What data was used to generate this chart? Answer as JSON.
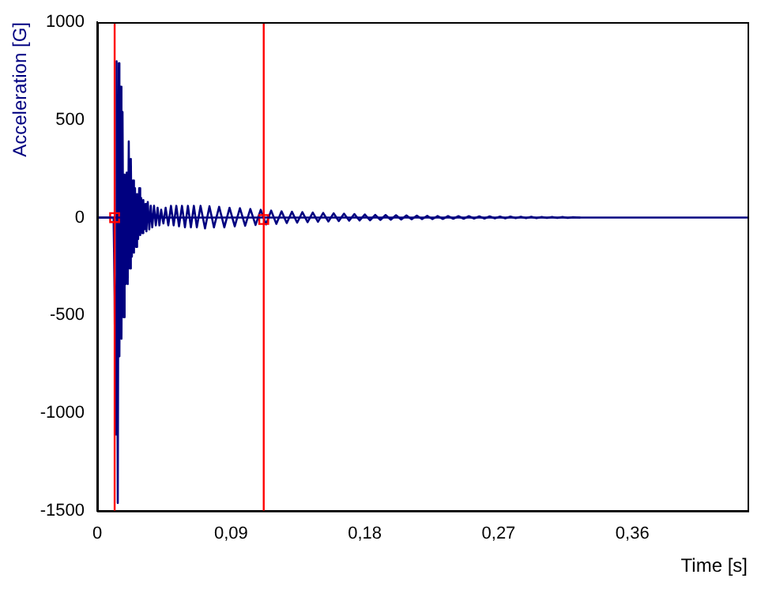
{
  "chart_data": {
    "type": "line",
    "xlabel": "Time [s]",
    "ylabel": "Acceleration [G]",
    "xlim": [
      0,
      0.4375
    ],
    "ylim": [
      -1500,
      1000
    ],
    "xticks": [
      0,
      {
        "value": 0.09,
        "label": "0,09"
      },
      {
        "value": 0.18,
        "label": "0,18"
      },
      {
        "value": 0.27,
        "label": "0,27"
      },
      {
        "value": 0.36,
        "label": "0,36"
      }
    ],
    "yticks": [
      -1500,
      -1000,
      -500,
      0,
      500,
      1000
    ],
    "grid": false,
    "legend": false,
    "ref_lines": [
      {
        "axis": "y",
        "value": 0,
        "color": "#000080"
      },
      {
        "axis": "x",
        "value": 0.0117,
        "color": "#ff0000"
      },
      {
        "axis": "x",
        "value": 0.112,
        "color": "#ff0000"
      }
    ],
    "series": [
      {
        "type": "line",
        "marker": "none",
        "color": "#000080",
        "x": [
          0,
          0.011,
          0.0117,
          0.0122,
          0.013,
          0.0138,
          0.0145,
          0.0149,
          0.0156,
          0.0163,
          0.017,
          0.0177,
          0.0184,
          0.0191,
          0.0198,
          0.0205,
          0.0212,
          0.0219,
          0.0226,
          0.0233,
          0.024,
          0.0247,
          0.0254,
          0.0261,
          0.0268,
          0.0275,
          0.0282,
          0.0289,
          0.0296,
          0.0303,
          0.031,
          0.0317,
          0.0324,
          0.0331,
          0.034,
          0.035,
          0.036,
          0.037,
          0.0382,
          0.0394,
          0.0406,
          0.0418,
          0.043,
          0.0445,
          0.046,
          0.0478,
          0.0496,
          0.0514,
          0.0532,
          0.055,
          0.057,
          0.059,
          0.061,
          0.063,
          0.065,
          0.067,
          0.0695,
          0.0725,
          0.0755,
          0.0785,
          0.082,
          0.0855,
          0.089,
          0.0925,
          0.096,
          0.0995,
          0.103,
          0.1065,
          0.11,
          0.1135,
          0.117,
          0.1205,
          0.124,
          0.1275,
          0.131,
          0.1345,
          0.138,
          0.1415,
          0.145,
          0.1485,
          0.152,
          0.1555,
          0.159,
          0.1625,
          0.166,
          0.1695,
          0.173,
          0.1765,
          0.18,
          0.1835,
          0.187,
          0.1905,
          0.194,
          0.1975,
          0.201,
          0.2045,
          0.208,
          0.2115,
          0.215,
          0.2185,
          0.222,
          0.2255,
          0.229,
          0.2325,
          0.236,
          0.2395,
          0.243,
          0.2465,
          0.25,
          0.2535,
          0.257,
          0.2605,
          0.264,
          0.2675,
          0.271,
          0.2745,
          0.278,
          0.2815,
          0.285,
          0.2885,
          0.292,
          0.2955,
          0.299,
          0.3025,
          0.306,
          0.3095,
          0.313,
          0.3165,
          0.32,
          0.325
        ],
        "values": [
          0,
          0,
          -400,
          -1110,
          800,
          -1460,
          790,
          -710,
          670,
          -620,
          540,
          -510,
          220,
          -340,
          230,
          -340,
          390,
          -260,
          300,
          -200,
          190,
          -180,
          150,
          -150,
          120,
          -110,
          150,
          -90,
          100,
          -80,
          90,
          -60,
          70,
          -70,
          80,
          -60,
          60,
          -50,
          60,
          -40,
          50,
          -40,
          40,
          -30,
          50,
          -40,
          60,
          -40,
          60,
          -45,
          60,
          -50,
          60,
          -50,
          60,
          -50,
          60,
          -55,
          58,
          -50,
          55,
          -50,
          50,
          -45,
          48,
          -42,
          44,
          -38,
          40,
          -35,
          36,
          -32,
          32,
          -28,
          30,
          -26,
          28,
          -24,
          26,
          -22,
          24,
          -20,
          22,
          -18,
          20,
          -16,
          18,
          -15,
          16,
          -14,
          14,
          -12,
          13,
          -11,
          12,
          -10,
          11,
          -9,
          10,
          -8,
          9,
          -8,
          8,
          -7,
          8,
          -6,
          7,
          -6,
          7,
          -5,
          6,
          -5,
          6,
          -4,
          5,
          -4,
          5,
          -3,
          4,
          -3,
          4,
          -3,
          3,
          -2,
          3,
          -2,
          3,
          -2,
          2,
          0
        ]
      },
      {
        "type": "scatter",
        "marker": "square",
        "color": "#ff0000",
        "x": [
          0.0117,
          0.112
        ],
        "values": [
          0,
          -10
        ]
      }
    ]
  }
}
